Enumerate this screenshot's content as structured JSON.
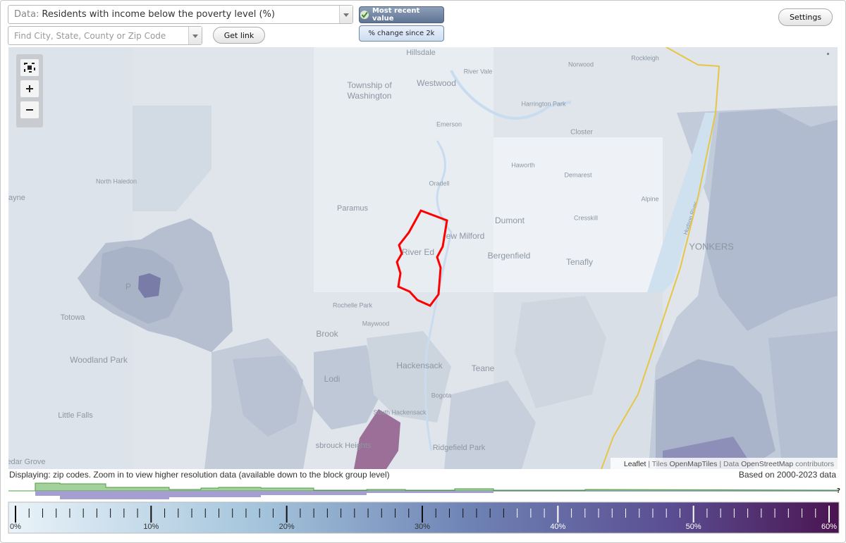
{
  "header": {
    "data_label": "Data:",
    "data_select": "Residents with income below the poverty level (%)",
    "search_placeholder": "Find City, State, County or Zip Code",
    "get_link": "Get link",
    "most_recent": "Most recent value",
    "pct_change": "% change since 2k",
    "settings": "Settings"
  },
  "map": {
    "labels": [
      "Hillsdale",
      "River Vale",
      "Norwood",
      "Rockleigh",
      "Township of",
      "Washington",
      "Westwood",
      "Harrington Park",
      "Emerson",
      "Closter",
      "Haworth",
      "Demarest",
      "North Haledon",
      "ayne",
      "Oradell",
      "Paramus",
      "Alpine",
      "Dumont",
      "ew Milford",
      "Cresskill",
      "River Ed",
      "Bergenfield",
      "Tenafly",
      "YONKERS",
      "Totowa",
      "Rochelle Park",
      "Maywood",
      "Brook",
      "Woodland Park",
      "Hackensack",
      "Teane",
      "Lodi",
      "Bogota",
      "Little Falls",
      "South Hackensack",
      "Ridgefield Park",
      "sbrouck Heights",
      "Cedar Grove",
      "P"
    ],
    "river_label": "Hudson River",
    "attribution": {
      "leaflet": "Leaflet",
      "tiles": "| Tiles",
      "openmaptiles": "OpenMapTiles",
      "data": "| Data",
      "openstreetmap": "OpenStreetMap",
      "contributors": "contributors"
    }
  },
  "footer": {
    "displaying": "Displaying: zip codes. Zoom in to view higher resolution data (available down to the block group level)",
    "based_on": "Based on 2000-2023 data",
    "unknown": "?"
  },
  "legend": {
    "ticks": [
      "0%",
      "10%",
      "20%",
      "30%",
      "40%",
      "50%",
      "60%"
    ]
  }
}
